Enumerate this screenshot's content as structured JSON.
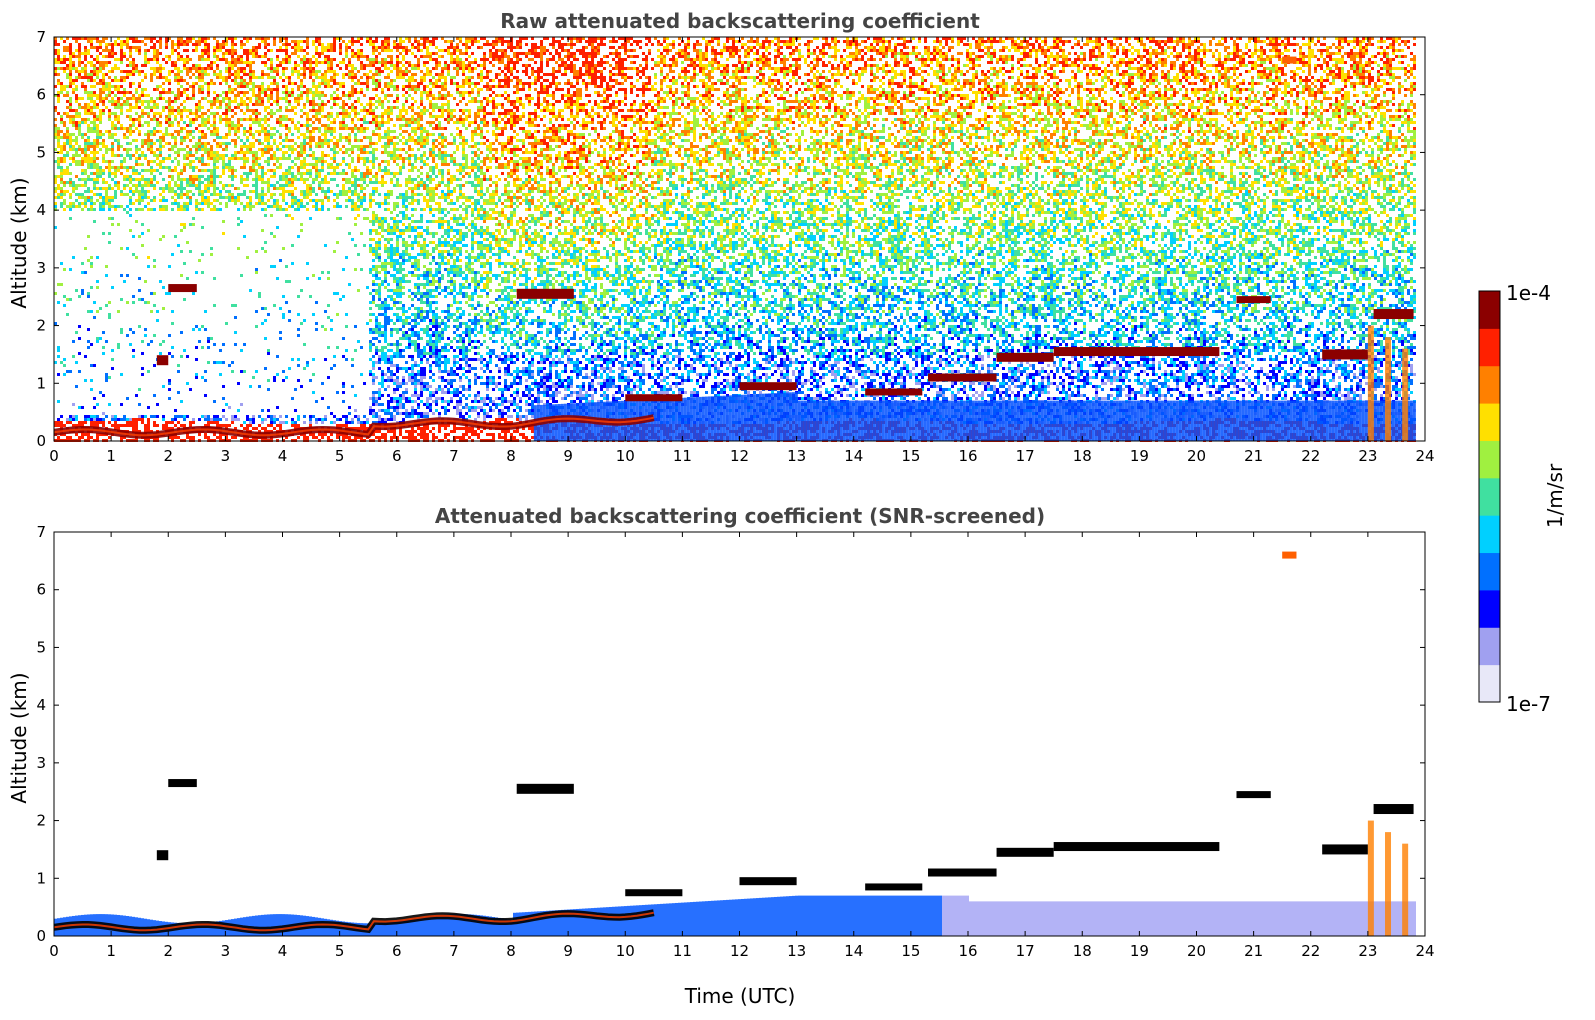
{
  "chart_data": [
    {
      "type": "heatmap",
      "title": "Raw attenuated backscattering coefficient",
      "xlabel": "",
      "ylabel": "Altitude (km)",
      "xlim": [
        0,
        24
      ],
      "ylim": [
        0,
        7
      ],
      "xticks": [
        0,
        1,
        2,
        3,
        4,
        5,
        6,
        7,
        8,
        9,
        10,
        11,
        12,
        13,
        14,
        15,
        16,
        17,
        18,
        19,
        20,
        21,
        22,
        23,
        24
      ],
      "yticks": [
        0,
        1,
        2,
        3,
        4,
        5,
        6,
        7
      ],
      "features": [
        {
          "name": "boundary layer",
          "t_start": 0,
          "t_end": 10.5,
          "alt_start": 0.15,
          "alt_end": 0.45,
          "level": "high"
        },
        {
          "name": "cloud layer",
          "t_start": 8.1,
          "t_end": 9.1,
          "alt": 2.5,
          "level": "high"
        },
        {
          "name": "cloud layer",
          "t_start": 2.0,
          "t_end": 2.5,
          "alt": 2.6,
          "level": "high"
        },
        {
          "name": "cloud layer",
          "t_start": 16.5,
          "t_end": 20.4,
          "alt": 1.55,
          "level": "high"
        },
        {
          "name": "cloud layer",
          "t_start": 22.2,
          "t_end": 23.9,
          "alt": 1.5,
          "level": "high"
        },
        {
          "name": "aloft aerosol",
          "t_start": 21.5,
          "t_end": 21.8,
          "alt": 6.6,
          "level": "high"
        }
      ],
      "noise_region": "above 1 km, increasing noise with altitude, strongest 7.5-10.5 UTC"
    },
    {
      "type": "heatmap",
      "title": "Attenuated backscattering coefficient (SNR-screened)",
      "xlabel": "Time (UTC)",
      "ylabel": "Altitude (km)",
      "xlim": [
        0,
        24
      ],
      "ylim": [
        0,
        7
      ],
      "xticks": [
        0,
        1,
        2,
        3,
        4,
        5,
        6,
        7,
        8,
        9,
        10,
        11,
        12,
        13,
        14,
        15,
        16,
        17,
        18,
        19,
        20,
        21,
        22,
        23,
        24
      ],
      "yticks": [
        0,
        1,
        2,
        3,
        4,
        5,
        6,
        7
      ],
      "noise_region": "screened out (white)"
    }
  ],
  "colorbar": {
    "label": "1/m/sr",
    "min_label": "1e-7",
    "max_label": "1e-4",
    "scale": "log",
    "colors": [
      "#e8e8f8",
      "#a0a0f0",
      "#0000ff",
      "#0070ff",
      "#00d0ff",
      "#40e0a0",
      "#a0f040",
      "#ffe000",
      "#ff8000",
      "#ff2000",
      "#8b0000"
    ]
  }
}
